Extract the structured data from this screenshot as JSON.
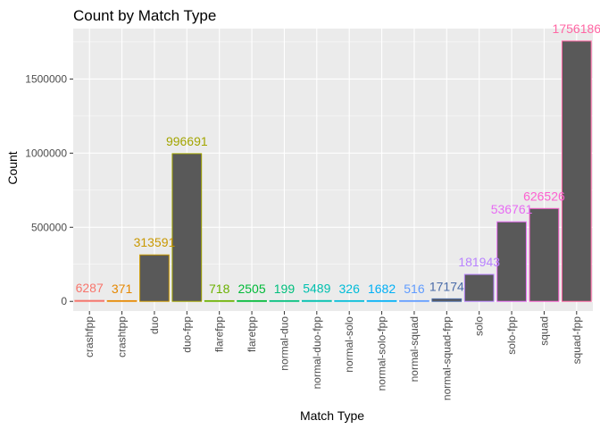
{
  "chart_data": {
    "type": "bar",
    "title": "Count by Match Type",
    "xlabel": "Match Type",
    "ylabel": "Count",
    "categories": [
      "crashfpp",
      "crashtpp",
      "duo",
      "duo-fpp",
      "flarefpp",
      "flaretpp",
      "normal-duo",
      "normal-duo-fpp",
      "normal-solo",
      "normal-solo-fpp",
      "normal-squad",
      "normal-squad-fpp",
      "solo",
      "solo-fpp",
      "squad",
      "squad-fpp"
    ],
    "values": [
      6287,
      371,
      313591,
      996691,
      718,
      2505,
      199,
      5489,
      326,
      1682,
      516,
      17174,
      181943,
      536761,
      626526,
      1756186
    ],
    "data_labels": [
      "6287",
      "371",
      "313591",
      "996691",
      "718",
      "2505",
      "199",
      "5489",
      "326",
      "1682",
      "516",
      "17174",
      "181943",
      "536761",
      "626526",
      "1756186"
    ],
    "ylim": [
      -65000,
      1840000
    ],
    "yticks": [
      0,
      500000,
      1000000,
      1500000
    ],
    "ytick_labels": [
      "0",
      "500000",
      "1000000",
      "1500000"
    ],
    "colors": [
      "#F8766D",
      "#E58700",
      "#C99800",
      "#A3A500",
      "#6BB100",
      "#00BA38",
      "#00BF7D",
      "#00C0AF",
      "#00BCD8",
      "#00B0F6",
      "#619CFF",
      "#4A6BA8",
      "#B983FF",
      "#E76BF3",
      "#FD61D1",
      "#FF67A4"
    ],
    "bar_fill": "#595959",
    "panel_bg": "#EBEBEB",
    "grid_color": "#FFFFFF",
    "grid": true,
    "legend": "none"
  }
}
